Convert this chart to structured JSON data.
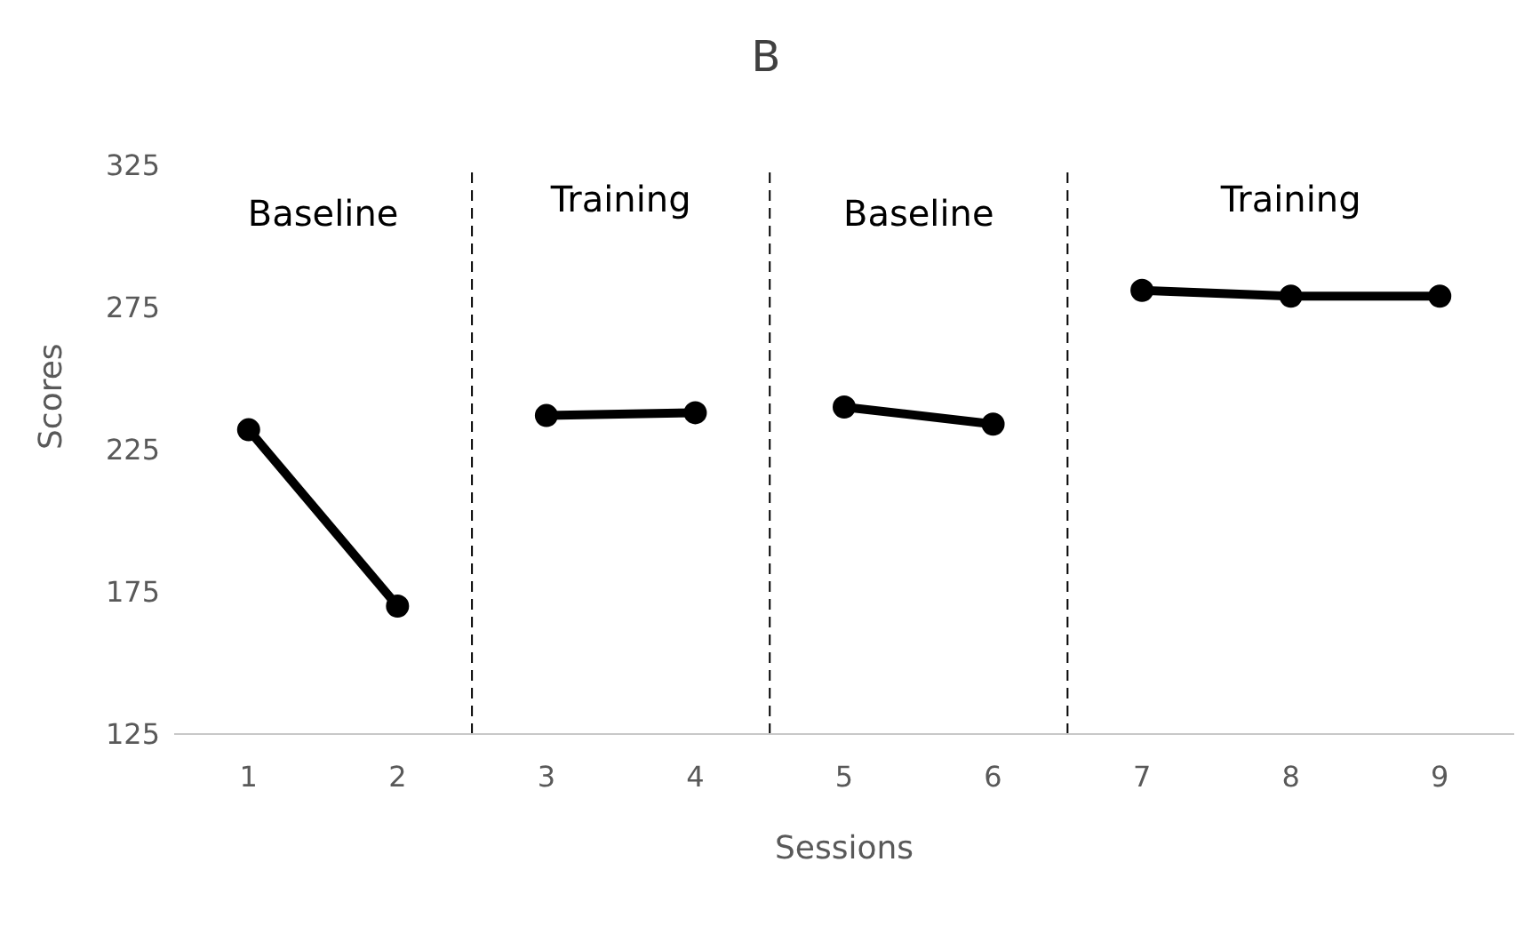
{
  "chart_data": {
    "type": "line",
    "title": "B",
    "xlabel": "Sessions",
    "ylabel": "Scores",
    "series": [
      {
        "color": "#000000",
        "x": [
          1,
          2
        ],
        "values": [
          232,
          170
        ]
      },
      {
        "color": "#000000",
        "x": [
          3,
          4
        ],
        "values": [
          237,
          238
        ]
      },
      {
        "color": "#000000",
        "x": [
          5,
          6
        ],
        "values": [
          240,
          234
        ]
      },
      {
        "color": "#000000",
        "x": [
          7,
          8,
          9
        ],
        "values": [
          281,
          279,
          279
        ]
      }
    ],
    "xlim": [
      0.5,
      9.5
    ],
    "xticks": [
      1,
      2,
      3,
      4,
      5,
      6,
      7,
      8,
      9
    ],
    "ylim": [
      125,
      325
    ],
    "yticks": [
      125,
      175,
      225,
      275,
      325
    ],
    "ref_lines": [
      {
        "axis": "x",
        "value": 2.5,
        "color": "#000000",
        "line_style": "dashed"
      },
      {
        "axis": "x",
        "value": 4.5,
        "color": "#000000",
        "line_style": "dashed"
      },
      {
        "axis": "x",
        "value": 6.5,
        "color": "#000000",
        "line_style": "dashed"
      }
    ],
    "annotations": [
      "Baseline",
      "Training",
      "Baseline",
      "Training"
    ],
    "grid": false,
    "marker": "circle",
    "line_style": "solid"
  }
}
